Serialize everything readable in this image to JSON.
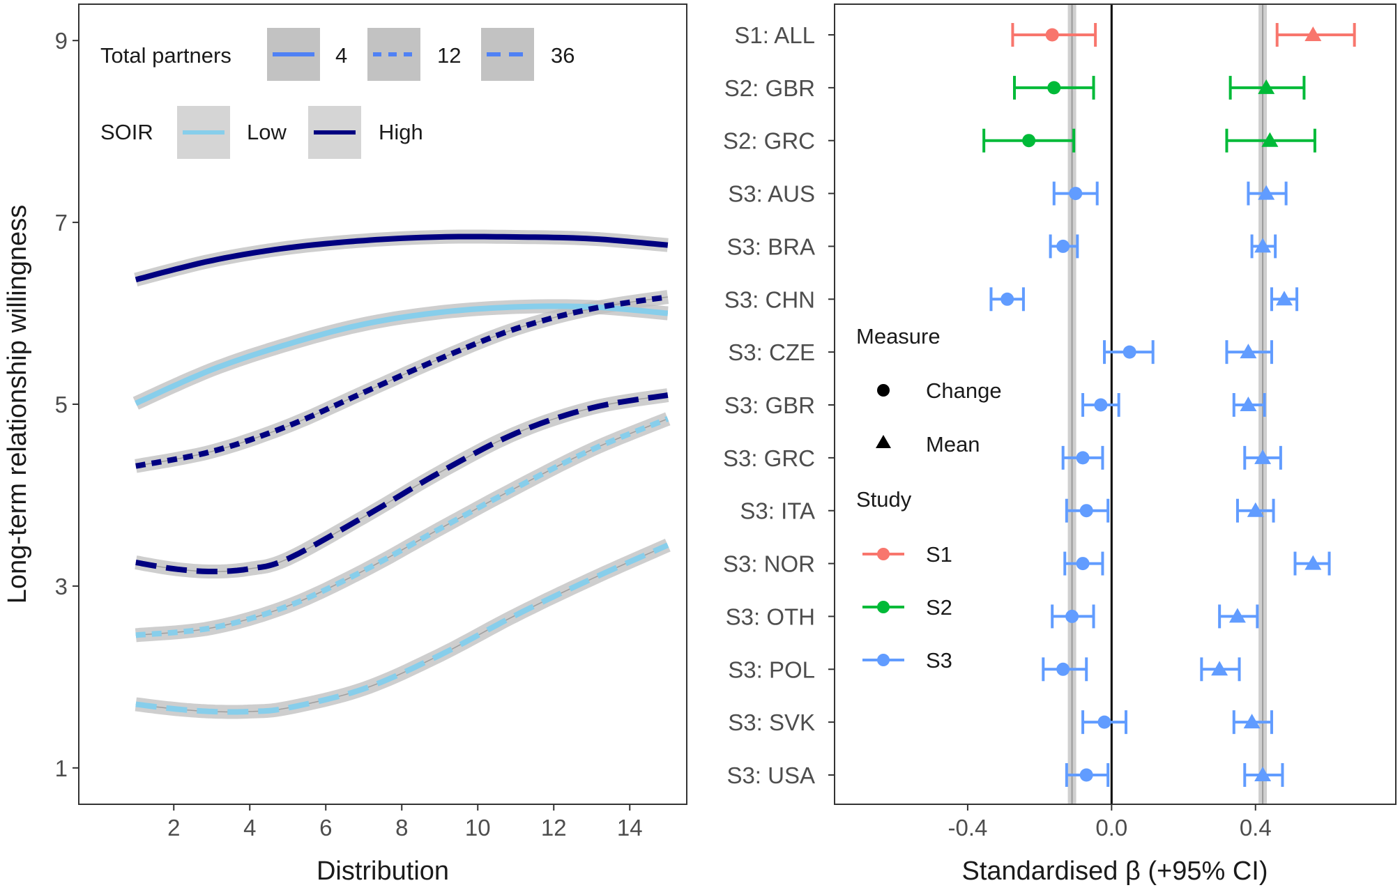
{
  "chart_data": [
    {
      "type": "line",
      "xlabel": "Distribution",
      "ylabel": "Long-term relationship willingness",
      "xlim": [
        -0.5,
        15.5
      ],
      "ylim": [
        0.6,
        9.4
      ],
      "xticks": [
        2,
        4,
        6,
        8,
        10,
        12,
        14
      ],
      "yticks": [
        1,
        3,
        5,
        7,
        9
      ],
      "legend": {
        "partners_title": "Total partners",
        "partners": [
          {
            "label": "4",
            "dash": "solid"
          },
          {
            "label": "12",
            "dash": "dotted"
          },
          {
            "label": "36",
            "dash": "dashed"
          }
        ],
        "soir_title": "SOIR",
        "soir": [
          {
            "label": "Low",
            "color": "#87ceeb"
          },
          {
            "label": "High",
            "color": "#000080"
          }
        ]
      },
      "series": [
        {
          "name": "High SOIR, 4 partners",
          "soir": "High",
          "partners": "4",
          "x": [
            1,
            3,
            5,
            7,
            9,
            11,
            13,
            15
          ],
          "y": [
            6.37,
            6.58,
            6.72,
            6.8,
            6.84,
            6.84,
            6.82,
            6.75
          ]
        },
        {
          "name": "Low SOIR, 4 partners",
          "soir": "Low",
          "partners": "4",
          "x": [
            1,
            3,
            5,
            7,
            9,
            11,
            13,
            15
          ],
          "y": [
            5.01,
            5.38,
            5.66,
            5.88,
            6.01,
            6.07,
            6.07,
            6.0
          ]
        },
        {
          "name": "High SOIR, 12 partners",
          "soir": "High",
          "partners": "12",
          "x": [
            1,
            3,
            5,
            7,
            9,
            11,
            13,
            15
          ],
          "y": [
            4.32,
            4.48,
            4.76,
            5.13,
            5.5,
            5.83,
            6.05,
            6.18
          ]
        },
        {
          "name": "High SOIR, 36 partners",
          "soir": "High",
          "partners": "36",
          "x": [
            1,
            2,
            3,
            4,
            5,
            7,
            9,
            11,
            13,
            15
          ],
          "y": [
            3.26,
            3.19,
            3.16,
            3.19,
            3.3,
            3.76,
            4.25,
            4.68,
            4.96,
            5.1
          ]
        },
        {
          "name": "Low SOIR, 12 partners",
          "soir": "Low",
          "partners": "12",
          "x": [
            1,
            3,
            5,
            7,
            9,
            11,
            13,
            15
          ],
          "y": [
            2.46,
            2.54,
            2.78,
            3.17,
            3.63,
            4.08,
            4.5,
            4.84
          ]
        },
        {
          "name": "Low SOIR, 36 partners",
          "soir": "Low",
          "partners": "36",
          "x": [
            1,
            2,
            3,
            4,
            5,
            7,
            9,
            11,
            13,
            15
          ],
          "y": [
            1.7,
            1.65,
            1.62,
            1.62,
            1.66,
            1.87,
            2.24,
            2.68,
            3.08,
            3.45
          ]
        }
      ]
    },
    {
      "type": "scatter",
      "xlabel": "Standardised β (+95% CI)",
      "xlim": [
        -0.77,
        0.79
      ],
      "xticks": [
        {
          "value": -0.4,
          "label": "-0.4"
        },
        {
          "value": 0.0,
          "label": "0.0"
        },
        {
          "value": 0.4,
          "label": "0.4"
        }
      ],
      "reference_lines": {
        "zero": 0.0,
        "mean_change": -0.11,
        "mean_mean": 0.42
      },
      "categories": [
        "S1: ALL",
        "S2: GBR",
        "S2: GRC",
        "S3: AUS",
        "S3: BRA",
        "S3: CHN",
        "S3: CZE",
        "S3: GBR",
        "S3: GRC",
        "S3: ITA",
        "S3: NOR",
        "S3: OTH",
        "S3: POL",
        "S3: SVK",
        "S3: USA"
      ],
      "study": [
        "S1",
        "S2",
        "S2",
        "S3",
        "S3",
        "S3",
        "S3",
        "S3",
        "S3",
        "S3",
        "S3",
        "S3",
        "S3",
        "S3",
        "S3"
      ],
      "study_colors": {
        "S1": "#f8766d",
        "S2": "#00ba38",
        "S3": "#619cff"
      },
      "series": [
        {
          "name": "Change",
          "shape": "circle",
          "estimate": [
            -0.165,
            -0.16,
            -0.23,
            -0.1,
            -0.135,
            -0.29,
            0.05,
            -0.03,
            -0.08,
            -0.07,
            -0.08,
            -0.11,
            -0.135,
            -0.02,
            -0.07
          ],
          "lower": [
            -0.275,
            -0.27,
            -0.355,
            -0.16,
            -0.17,
            -0.335,
            -0.02,
            -0.08,
            -0.135,
            -0.125,
            -0.13,
            -0.165,
            -0.19,
            -0.08,
            -0.125
          ],
          "upper": [
            -0.045,
            -0.05,
            -0.105,
            -0.04,
            -0.095,
            -0.245,
            0.115,
            0.02,
            -0.025,
            -0.01,
            -0.025,
            -0.05,
            -0.07,
            0.04,
            -0.01
          ]
        },
        {
          "name": "Mean",
          "shape": "triangle",
          "estimate": [
            0.56,
            0.43,
            0.44,
            0.43,
            0.42,
            0.48,
            0.38,
            0.38,
            0.42,
            0.4,
            0.56,
            0.35,
            0.3,
            0.39,
            0.42
          ],
          "lower": [
            0.46,
            0.33,
            0.32,
            0.38,
            0.39,
            0.445,
            0.32,
            0.34,
            0.37,
            0.35,
            0.51,
            0.3,
            0.25,
            0.34,
            0.37
          ],
          "upper": [
            0.675,
            0.535,
            0.565,
            0.485,
            0.455,
            0.515,
            0.445,
            0.425,
            0.47,
            0.45,
            0.605,
            0.405,
            0.355,
            0.445,
            0.475
          ]
        }
      ],
      "legend": {
        "measure_title": "Measure",
        "measures": [
          {
            "label": "Change",
            "shape": "circle"
          },
          {
            "label": "Mean",
            "shape": "triangle"
          }
        ],
        "study_title": "Study",
        "studies": [
          {
            "label": "S1",
            "color": "#f8766d"
          },
          {
            "label": "S2",
            "color": "#00ba38"
          },
          {
            "label": "S3",
            "color": "#619cff"
          }
        ]
      }
    }
  ]
}
